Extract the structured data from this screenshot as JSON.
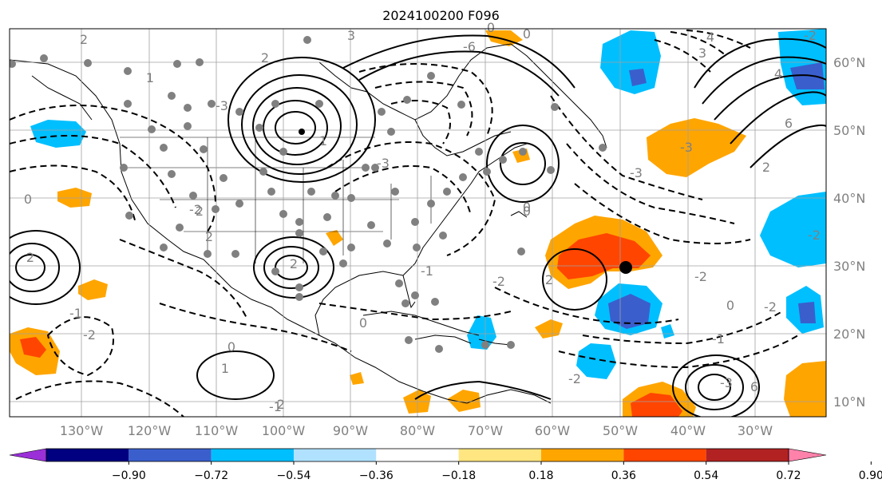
{
  "title": "2024100200 F096",
  "lon_labels": [
    "130°W",
    "120°W",
    "110°W",
    "100°W",
    "90°W",
    "80°W",
    "70°W",
    "60°W",
    "50°W",
    "40°W",
    "30°W"
  ],
  "lat_labels": [
    "60°N",
    "50°N",
    "40°N",
    "30°N",
    "20°N",
    "10°N"
  ],
  "contour_labels_solid": [
    "2",
    "2",
    "2",
    "2",
    "2",
    "1",
    "6",
    "3",
    "4",
    "6",
    "2",
    "0",
    "1",
    "2",
    "1",
    "2",
    "2",
    "0",
    "3",
    "4"
  ],
  "contour_labels_dashed": [
    "-2",
    "-3",
    "-1",
    "-2",
    "-3",
    "-1",
    "-2",
    "-3",
    "-3",
    "-2",
    "-1",
    "-2",
    "-1",
    "-2",
    "-2",
    "-3",
    "-6",
    "-2",
    "0",
    "0",
    "0",
    "0",
    "0",
    "0"
  ],
  "colorbar": {
    "ticks": [
      "−0.90",
      "−0.72",
      "−0.54",
      "−0.36",
      "−0.18",
      "0.18",
      "0.36",
      "0.54",
      "0.72",
      "0.90"
    ],
    "colors": [
      "#9b30d9",
      "#000080",
      "#3a5fcd",
      "#00bfff",
      "#b0e2ff",
      "#ffffff",
      "#ffe680",
      "#ffa500",
      "#ff4500",
      "#b22222",
      "#ff82ab"
    ]
  },
  "shading": {
    "negative_colors": [
      "#00bfff",
      "#3a5fcd"
    ],
    "positive_colors": [
      "#ffa500",
      "#ff4500"
    ]
  },
  "observation_dot_color": "#808080",
  "marker_color": "#000000"
}
